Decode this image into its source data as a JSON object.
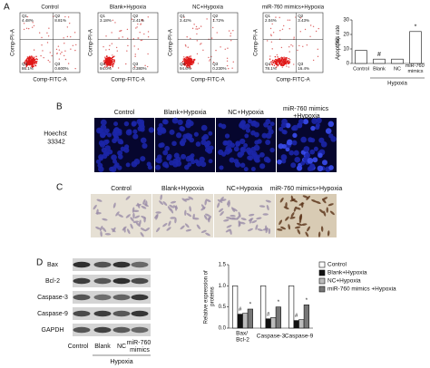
{
  "figure_labels": [
    "A",
    "B",
    "C",
    "D"
  ],
  "panel_a": {
    "y_label": "Comp-PI-A",
    "x_label": "Comp-FITC-A",
    "plots": [
      {
        "title": "Control",
        "q1": [
          "Q1",
          "4.48%"
        ],
        "q2": [
          "Q2",
          "8.81%"
        ],
        "q4": [
          "Q4",
          "86.1%"
        ],
        "q3": [
          "Q3",
          "0.600%"
        ]
      },
      {
        "title": "Blank+Hypoxia",
        "q1": [
          "Q1",
          "3.18%"
        ],
        "q2": [
          "Q2",
          "2.41%"
        ],
        "q4": [
          "Q4",
          "94.0%"
        ],
        "q3": [
          "Q3",
          "0.380%"
        ]
      },
      {
        "title": "NC+Hypoxia",
        "q1": [
          "Q1",
          "3.42%"
        ],
        "q2": [
          "Q2",
          "1.72%"
        ],
        "q4": [
          "Q4",
          "94.6%"
        ],
        "q3": [
          "Q3",
          "0.230%"
        ]
      },
      {
        "title": "miR-760 mimics+Hypoxia",
        "q1": [
          "Q1",
          "2.04%"
        ],
        "q2": [
          "Q2",
          "3.43%"
        ],
        "q4": [
          "Q4",
          "78.1%"
        ],
        "q3": [
          "Q3",
          "16.4%"
        ]
      }
    ]
  },
  "panel_b": {
    "row_label": "Hoechst 33342",
    "titles": [
      "Control",
      "Blank+Hypoxia",
      "NC+Hypoxia",
      "miR-760 mimics +Hypoxia"
    ]
  },
  "panel_c": {
    "titles": [
      "Control",
      "Blank+Hypoxia",
      "NC+Hypoxia",
      "miR-760 mimics+Hypoxia"
    ]
  },
  "panel_d": {
    "rows": [
      "Bax",
      "Bcl-2",
      "Caspase-3",
      "Caspase-9",
      "GAPDH"
    ],
    "lanes": [
      "Control",
      "Blank",
      "NC",
      "miR-760 mimics"
    ],
    "group_label": "Hypoxia"
  },
  "chart_data": [
    {
      "type": "bar",
      "y_label": "Apoptosis rate (%)",
      "categories": [
        "Control",
        "Blank",
        "NC",
        "miR-760 mimics"
      ],
      "values": [
        9,
        3,
        3,
        22
      ],
      "color": "#ffffff",
      "ylim": [
        0,
        30
      ],
      "yticks": [
        0,
        10,
        20,
        30
      ],
      "group_label": "Hypoxia",
      "annotations": [
        {
          "text": "#",
          "category": "Blank"
        },
        {
          "text": "*",
          "category": "miR-760 mimics"
        }
      ]
    },
    {
      "type": "grouped_bar",
      "y_label": "Relative expression of proteins",
      "categories": [
        "Bax/ Bcl-2",
        "Caspase-3",
        "Caspase-9"
      ],
      "series": [
        {
          "name": "Control",
          "color": "#ffffff",
          "values": [
            1.0,
            1.0,
            1.0
          ]
        },
        {
          "name": "Blank+Hypoxia",
          "color": "#111111",
          "values": [
            0.33,
            0.22,
            0.18
          ]
        },
        {
          "name": "NC+Hypoxia",
          "color": "#bbbbbb",
          "values": [
            0.35,
            0.25,
            0.2
          ]
        },
        {
          "name": "miR-760 mimics +Hypoxia",
          "color": "#777777",
          "values": [
            0.45,
            0.5,
            0.55
          ]
        }
      ],
      "ylim": [
        0,
        1.5
      ],
      "yticks": [
        {
          "value": 0,
          "label": "0.0"
        },
        {
          "value": 0.5,
          "label": "0.5"
        },
        {
          "value": 1,
          "label": "1.0"
        },
        {
          "value": 1.5,
          "label": "1.5"
        }
      ],
      "annotations": [
        {
          "text": "#",
          "series": "Blank+Hypoxia"
        },
        {
          "text": "*",
          "series": "miR-760 mimics +Hypoxia"
        }
      ]
    }
  ]
}
